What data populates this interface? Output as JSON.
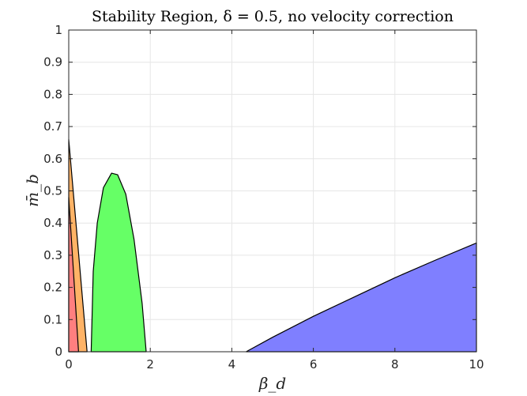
{
  "chart_data": {
    "type": "area",
    "title": "Stability Region, δ = 0.5, no velocity correction",
    "xlabel": "β_d",
    "ylabel": "m̄_b",
    "xlim": [
      0,
      10
    ],
    "ylim": [
      0,
      1
    ],
    "xticks": [
      0,
      2,
      4,
      6,
      8,
      10
    ],
    "yticks": [
      0,
      0.1,
      0.2,
      0.3,
      0.4,
      0.5,
      0.6,
      0.7,
      0.8,
      0.9,
      1
    ],
    "xtick_labels": [
      "0",
      "2",
      "4",
      "6",
      "8",
      "10"
    ],
    "ytick_labels": [
      "0",
      "0.1",
      "0.2",
      "0.3",
      "0.4",
      "0.5",
      "0.6",
      "0.7",
      "0.8",
      "0.9",
      "1"
    ],
    "grid": true,
    "regions": [
      {
        "color": "#ffb366",
        "points": [
          [
            0,
            0
          ],
          [
            0,
            0.66
          ],
          [
            0.45,
            0
          ]
        ]
      },
      {
        "color": "#ff7f7f",
        "points": [
          [
            0,
            0
          ],
          [
            0,
            0.48
          ],
          [
            0.24,
            0
          ]
        ]
      },
      {
        "color": "#66ff66",
        "points": [
          [
            0.55,
            0
          ],
          [
            0.6,
            0.25
          ],
          [
            0.7,
            0.4
          ],
          [
            0.85,
            0.51
          ],
          [
            1.05,
            0.555
          ],
          [
            1.2,
            0.55
          ],
          [
            1.4,
            0.49
          ],
          [
            1.6,
            0.35
          ],
          [
            1.8,
            0.15
          ],
          [
            1.9,
            0
          ]
        ]
      },
      {
        "color": "#7f7fff",
        "points": [
          [
            4.35,
            0
          ],
          [
            5.0,
            0.045
          ],
          [
            6.0,
            0.11
          ],
          [
            7.0,
            0.17
          ],
          [
            8.0,
            0.23
          ],
          [
            9.0,
            0.285
          ],
          [
            10.0,
            0.338
          ],
          [
            10.0,
            0
          ]
        ]
      }
    ]
  }
}
